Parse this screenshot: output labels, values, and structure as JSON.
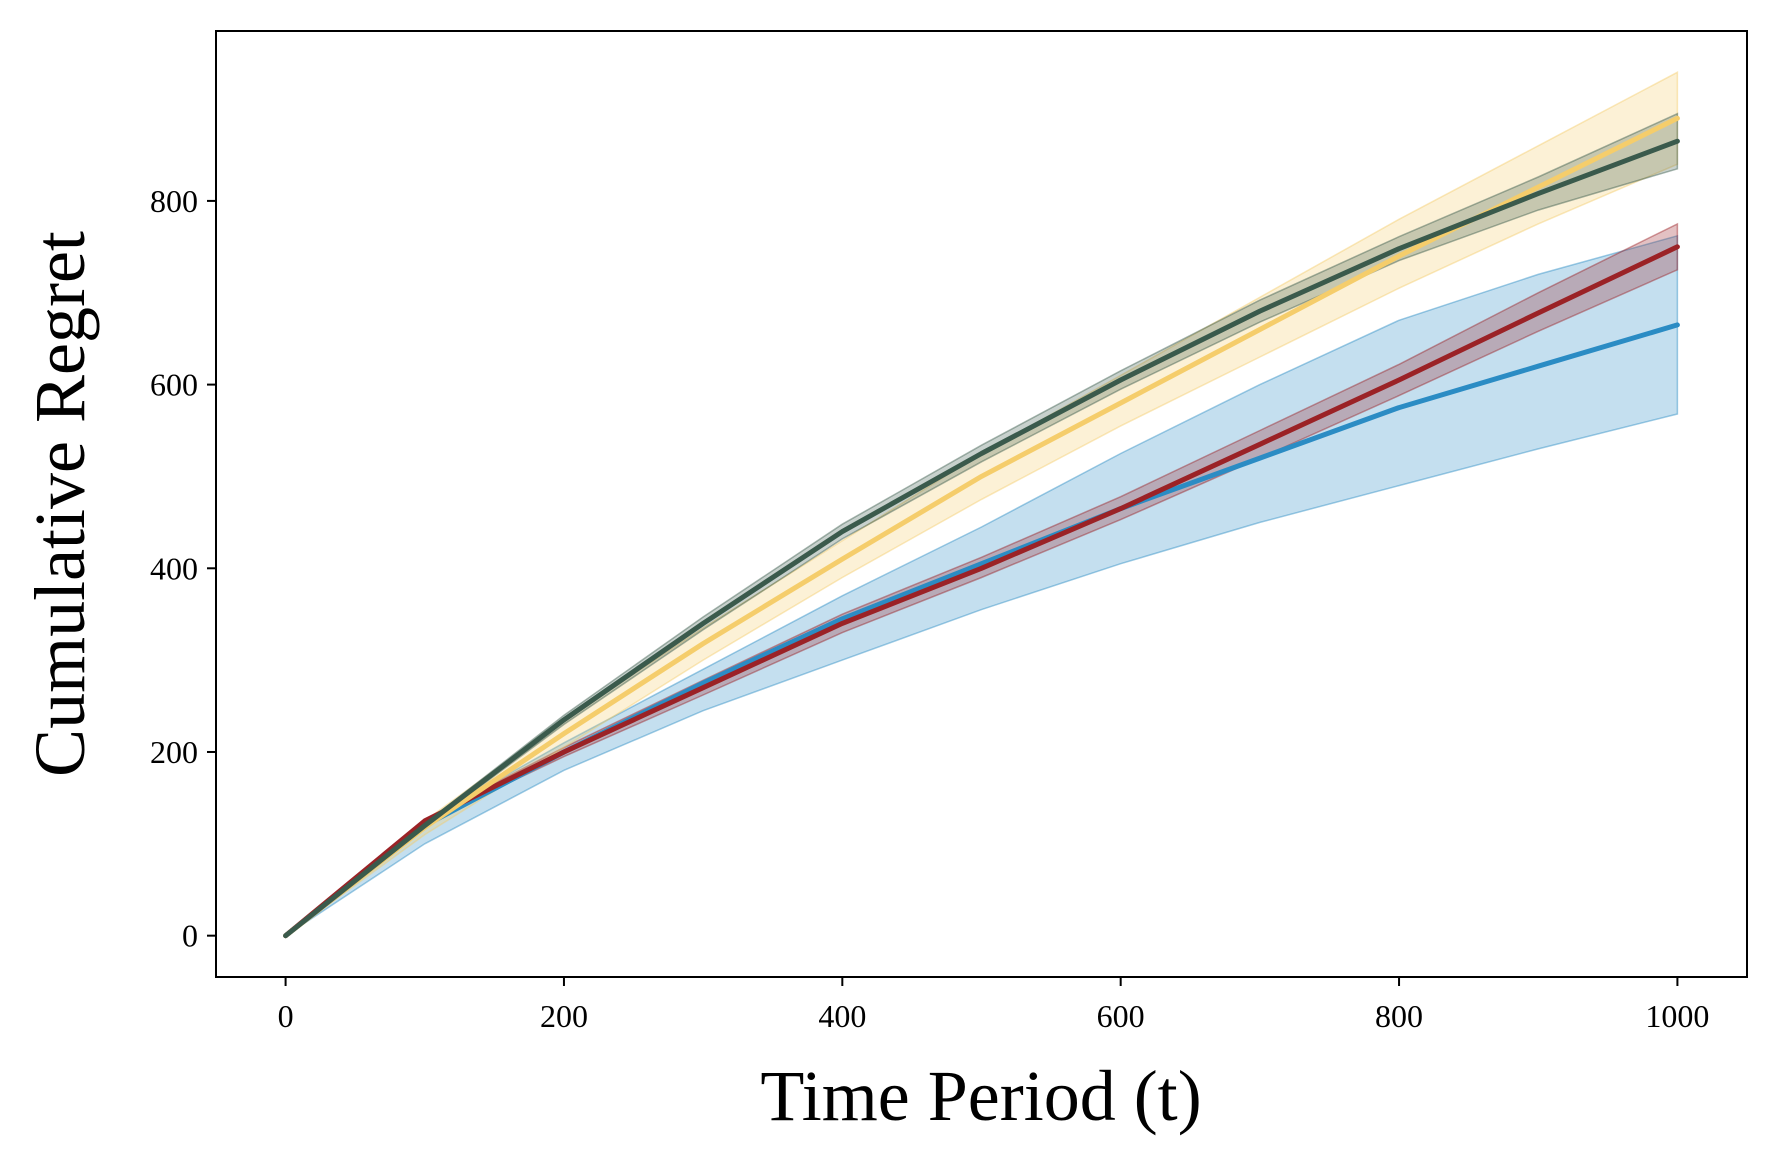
{
  "chart_data": {
    "type": "line",
    "title": "",
    "xlabel": "Time Period (t)",
    "ylabel": "Cumulative Regret",
    "xlim": [
      -50,
      1050
    ],
    "ylim": [
      -45,
      985
    ],
    "xticks": [
      0,
      200,
      400,
      600,
      800,
      1000
    ],
    "yticks": [
      0,
      200,
      400,
      600,
      800
    ],
    "grid": false,
    "legend": "none",
    "series": [
      {
        "name": "blue",
        "color": "#2b8cc4",
        "x": [
          0,
          100,
          200,
          300,
          400,
          500,
          600,
          700,
          800,
          900,
          1000
        ],
        "values": [
          0,
          120,
          200,
          275,
          345,
          405,
          465,
          520,
          575,
          620,
          665
        ],
        "lower": [
          0,
          100,
          180,
          245,
          300,
          355,
          405,
          450,
          490,
          530,
          568
        ],
        "upper": [
          0,
          125,
          210,
          290,
          370,
          445,
          525,
          600,
          670,
          720,
          762
        ]
      },
      {
        "name": "red",
        "color": "#9b2226",
        "x": [
          0,
          100,
          200,
          300,
          400,
          500,
          600,
          700,
          800,
          900,
          1000
        ],
        "values": [
          0,
          125,
          200,
          270,
          340,
          400,
          465,
          535,
          605,
          678,
          750
        ],
        "lower": [
          0,
          123,
          195,
          262,
          330,
          390,
          453,
          520,
          588,
          658,
          725
        ],
        "upper": [
          0,
          127,
          205,
          278,
          350,
          412,
          478,
          550,
          622,
          700,
          775
        ]
      },
      {
        "name": "yellow",
        "color": "#f5cd6b",
        "x": [
          0,
          100,
          200,
          300,
          400,
          500,
          600,
          700,
          800,
          900,
          1000
        ],
        "values": [
          0,
          118,
          220,
          318,
          410,
          500,
          580,
          660,
          740,
          815,
          890
        ],
        "lower": [
          0,
          110,
          205,
          300,
          390,
          475,
          555,
          630,
          705,
          775,
          840
        ],
        "upper": [
          0,
          125,
          235,
          335,
          430,
          525,
          610,
          695,
          780,
          860,
          940
        ]
      },
      {
        "name": "dark-green",
        "color": "#3a5a4c",
        "x": [
          0,
          100,
          200,
          300,
          400,
          500,
          600,
          700,
          800,
          900,
          1000
        ],
        "values": [
          0,
          120,
          235,
          340,
          440,
          525,
          605,
          680,
          748,
          808,
          865
        ],
        "lower": [
          0,
          118,
          230,
          333,
          432,
          516,
          595,
          668,
          735,
          790,
          835
        ],
        "upper": [
          0,
          122,
          240,
          347,
          448,
          534,
          615,
          692,
          761,
          826,
          895
        ]
      }
    ]
  }
}
